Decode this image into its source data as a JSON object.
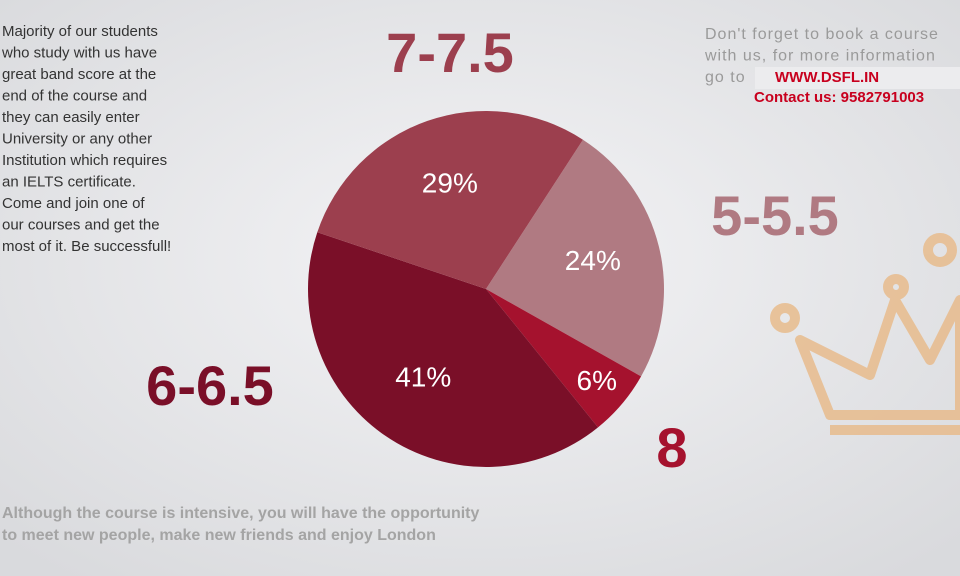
{
  "chart_data": {
    "type": "pie",
    "categories": [
      "5-5.5",
      "8",
      "6-6.5",
      "7-7.5"
    ],
    "values": [
      24,
      6,
      41,
      29
    ],
    "value_labels": [
      "24%",
      "6%",
      "41%",
      "29%"
    ],
    "colors": [
      "#b07a82",
      "#a5122e",
      "#7a0f28",
      "#9c3f4e"
    ]
  },
  "intro": [
    "Majority of our students",
    "who study with us have",
    "great band score at the",
    "end of the course and",
    "they can easily enter",
    "University or any other",
    "Institution which requires",
    "an IELTS certificate.",
    "Come and join one of",
    "our courses and get the",
    "most of it. Be successfull!"
  ],
  "note": [
    "Don't forget to book a course",
    "with us, for more information",
    "go to"
  ],
  "website": "WWW.DSFL.IN",
  "contact": "Contact us: 9582791003",
  "footer": [
    "Although the course is intensive, you will have the opportunity",
    "to meet new people, make new friends and enjoy London"
  ]
}
